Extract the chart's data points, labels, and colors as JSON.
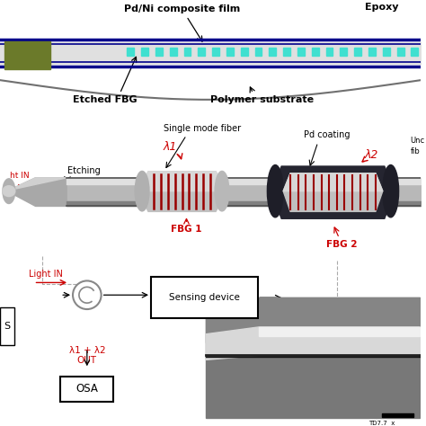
{
  "bg_color": "#ffffff",
  "black": "#000000",
  "red_color": "#cc0000",
  "dark_blue": "#00008B",
  "teal": "#40E0D0",
  "olive": "#6B7A2A",
  "fiber_gray": "#c0c0c0",
  "fiber_highlight": "#e8e8e8",
  "fiber_shadow": "#888888",
  "dark_coat": "#282830",
  "mid_gray": "#a0a0a0",
  "sem_bg": "#7a7a7a",
  "sem_fiber_light": "#d8d8d8",
  "panel_a": {
    "pd_ni": "Pd/Ni composite film",
    "epoxy": "Epoxy",
    "etched_fbg": "Etched FBG",
    "polymer": "Polymer substrate"
  },
  "panel_b": {
    "smf": "Single mode fiber",
    "pd_coating": "Pd coating",
    "unc": "Unc",
    "fib": "fib",
    "fbg1": "FBG 1",
    "fbg2": "FBG 2",
    "etching": "Etching",
    "lam1": "λ1",
    "lam2": "λ2",
    "light_in": "ht IN"
  },
  "panel_c": {
    "s": "S",
    "light_in": "Light IN",
    "sensing": "Sensing device",
    "lam_out": "λ1 + λ2\nOUT",
    "osa": "OSA"
  },
  "sem_text": "TD7.7  x"
}
